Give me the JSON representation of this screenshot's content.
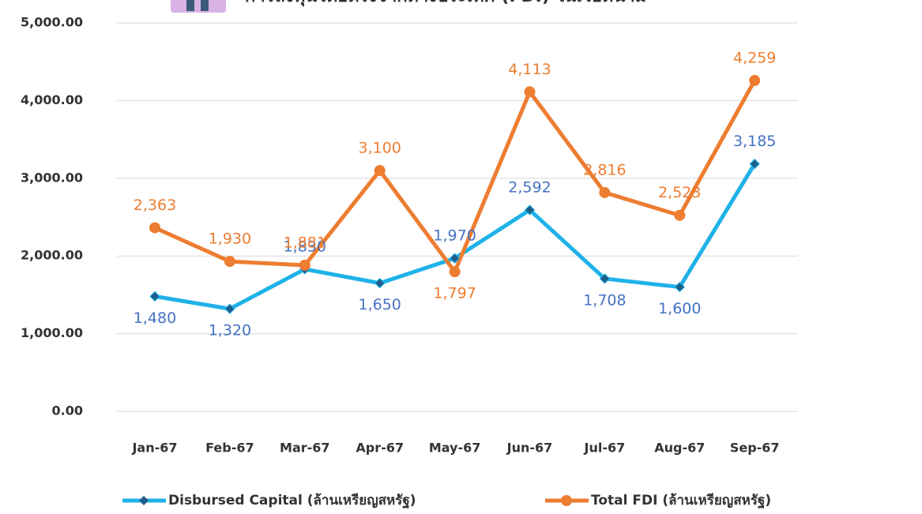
{
  "chart_data": {
    "type": "line",
    "title": "การลงทุนโดยตรงจากต่างประเทศ (FDI) ในเวียดนาม",
    "categories": [
      "Jan-67",
      "Feb-67",
      "Mar-67",
      "Apr-67",
      "May-67",
      "Jun-67",
      "Jul-67",
      "Aug-67",
      "Sep-67"
    ],
    "series": [
      {
        "name": "Disbursed Capital (ล้านเหรียญสหรัฐ)",
        "color": "#1fb2e8",
        "marker": "diamond",
        "values": [
          1480,
          1320,
          1830,
          1650,
          1970,
          2592,
          1708,
          1600,
          3185
        ],
        "value_labels": [
          "1,480",
          "1,320",
          "1,830",
          "1,650",
          "1,970",
          "2,592",
          "1,708",
          "1,600",
          "3,185"
        ]
      },
      {
        "name": "Total FDI (ล้านเหรียญสหรัฐ)",
        "color": "#ed7d31",
        "marker": "circle",
        "values": [
          2363,
          1930,
          1881,
          3100,
          1797,
          4113,
          2816,
          2523,
          4259
        ],
        "value_labels": [
          "2,363",
          "1,930",
          "1,881",
          "3,100",
          "1,797",
          "4,113",
          "2,816",
          "2,523",
          "4,259"
        ]
      }
    ],
    "ylim": [
      0,
      5000
    ],
    "yticks": [
      {
        "value": 0,
        "label": "0.00"
      },
      {
        "value": 1000,
        "label": "1,000.00"
      },
      {
        "value": 2000,
        "label": "2,000.00"
      },
      {
        "value": 3000,
        "label": "3,000.00"
      },
      {
        "value": 4000,
        "label": "4,000.00"
      },
      {
        "value": 5000,
        "label": "5,000.00"
      }
    ],
    "grid": true,
    "legend": "bottom"
  }
}
